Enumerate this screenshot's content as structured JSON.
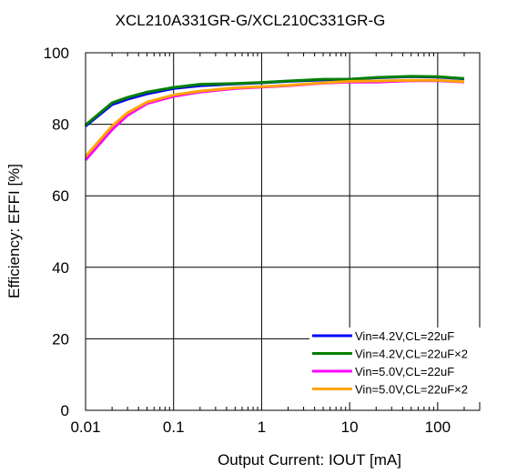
{
  "chart_data": {
    "type": "line",
    "title": "XCL210A331GR-G/XCL210C331GR-G",
    "xlabel": "Output Current: IOUT [mA]",
    "ylabel": "Efficiency: EFFI [%]",
    "x_scale": "log",
    "xlim": [
      0.01,
      300
    ],
    "ylim": [
      0,
      100
    ],
    "x_ticks": [
      0.01,
      0.1,
      1,
      10,
      100
    ],
    "x_tick_labels": [
      "0.01",
      "0.1",
      "1",
      "10",
      "100"
    ],
    "y_ticks": [
      0,
      20,
      40,
      60,
      80,
      100
    ],
    "y_tick_labels": [
      "0",
      "20",
      "40",
      "60",
      "80",
      "100"
    ],
    "grid": true,
    "legend_position": "bottom-right",
    "series": [
      {
        "name": "Vin=4.2V,CL=22uF",
        "color": "#0000ff",
        "x": [
          0.01,
          0.02,
          0.03,
          0.05,
          0.1,
          0.2,
          0.5,
          1,
          2,
          5,
          10,
          20,
          50,
          100,
          200
        ],
        "y": [
          79.5,
          85.5,
          87,
          88.5,
          90,
          90.8,
          91.3,
          91.6,
          92,
          92.4,
          92.6,
          93,
          93.3,
          93.2,
          92.7
        ]
      },
      {
        "name": "Vin=4.2V,CL=22uF×2",
        "color": "#008000",
        "x": [
          0.01,
          0.02,
          0.03,
          0.05,
          0.1,
          0.2,
          0.5,
          1,
          2,
          5,
          10,
          20,
          50,
          100,
          200
        ],
        "y": [
          79.8,
          86,
          87.5,
          89,
          90.3,
          91.2,
          91.4,
          91.7,
          92.1,
          92.6,
          92.6,
          93.1,
          93.4,
          93.3,
          92.8
        ]
      },
      {
        "name": "Vin=5.0V,CL=22uF",
        "color": "#ff00ff",
        "x": [
          0.01,
          0.02,
          0.03,
          0.05,
          0.1,
          0.2,
          0.5,
          1,
          2,
          5,
          10,
          20,
          50,
          100,
          200
        ],
        "y": [
          70,
          78.5,
          82.5,
          85.8,
          87.8,
          89,
          90,
          90.4,
          90.8,
          91.5,
          91.8,
          91.8,
          92.2,
          92.2,
          91.8
        ]
      },
      {
        "name": "Vin=5.0V,CL=22uF×2",
        "color": "#ffa500",
        "x": [
          0.01,
          0.02,
          0.03,
          0.05,
          0.1,
          0.2,
          0.5,
          1,
          2,
          5,
          10,
          20,
          50,
          100,
          200
        ],
        "y": [
          71,
          79.5,
          83.2,
          86.2,
          88.2,
          89.3,
          90.2,
          90.5,
          90.9,
          91.6,
          92,
          92.1,
          92.3,
          92.3,
          91.9
        ]
      }
    ]
  }
}
